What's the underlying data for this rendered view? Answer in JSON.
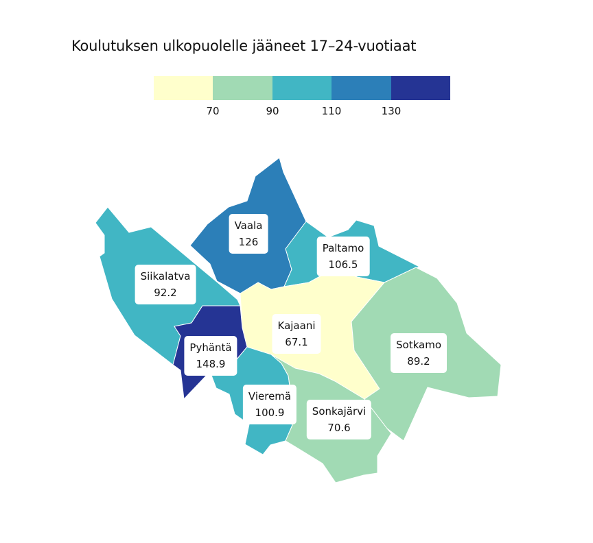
{
  "title": "Koulutuksen ulkopuolelle jääneet 17–24-vuotiaat",
  "legend": {
    "colors": [
      "#ffffcc",
      "#a1dab4",
      "#41b6c4",
      "#2c7fb8",
      "#253494"
    ],
    "ticks": [
      "70",
      "90",
      "110",
      "130"
    ]
  },
  "regions": {
    "vaala": {
      "name": "Vaala",
      "value": "126",
      "color": "#2c7fb8"
    },
    "paltamo": {
      "name": "Paltamo",
      "value": "106.5",
      "color": "#41b6c4"
    },
    "siikalatva": {
      "name": "Siikalatva",
      "value": "92.2",
      "color": "#41b6c4"
    },
    "kajaani": {
      "name": "Kajaani",
      "value": "67.1",
      "color": "#ffffcc"
    },
    "sotkamo": {
      "name": "Sotkamo",
      "value": "89.2",
      "color": "#a1dab4"
    },
    "pyhanta": {
      "name": "Pyhäntä",
      "value": "148.9",
      "color": "#253494"
    },
    "vierema": {
      "name": "Vieremä",
      "value": "100.9",
      "color": "#41b6c4"
    },
    "sonkajarvi": {
      "name": "Sonkajärvi",
      "value": "70.6",
      "color": "#a1dab4"
    }
  }
}
